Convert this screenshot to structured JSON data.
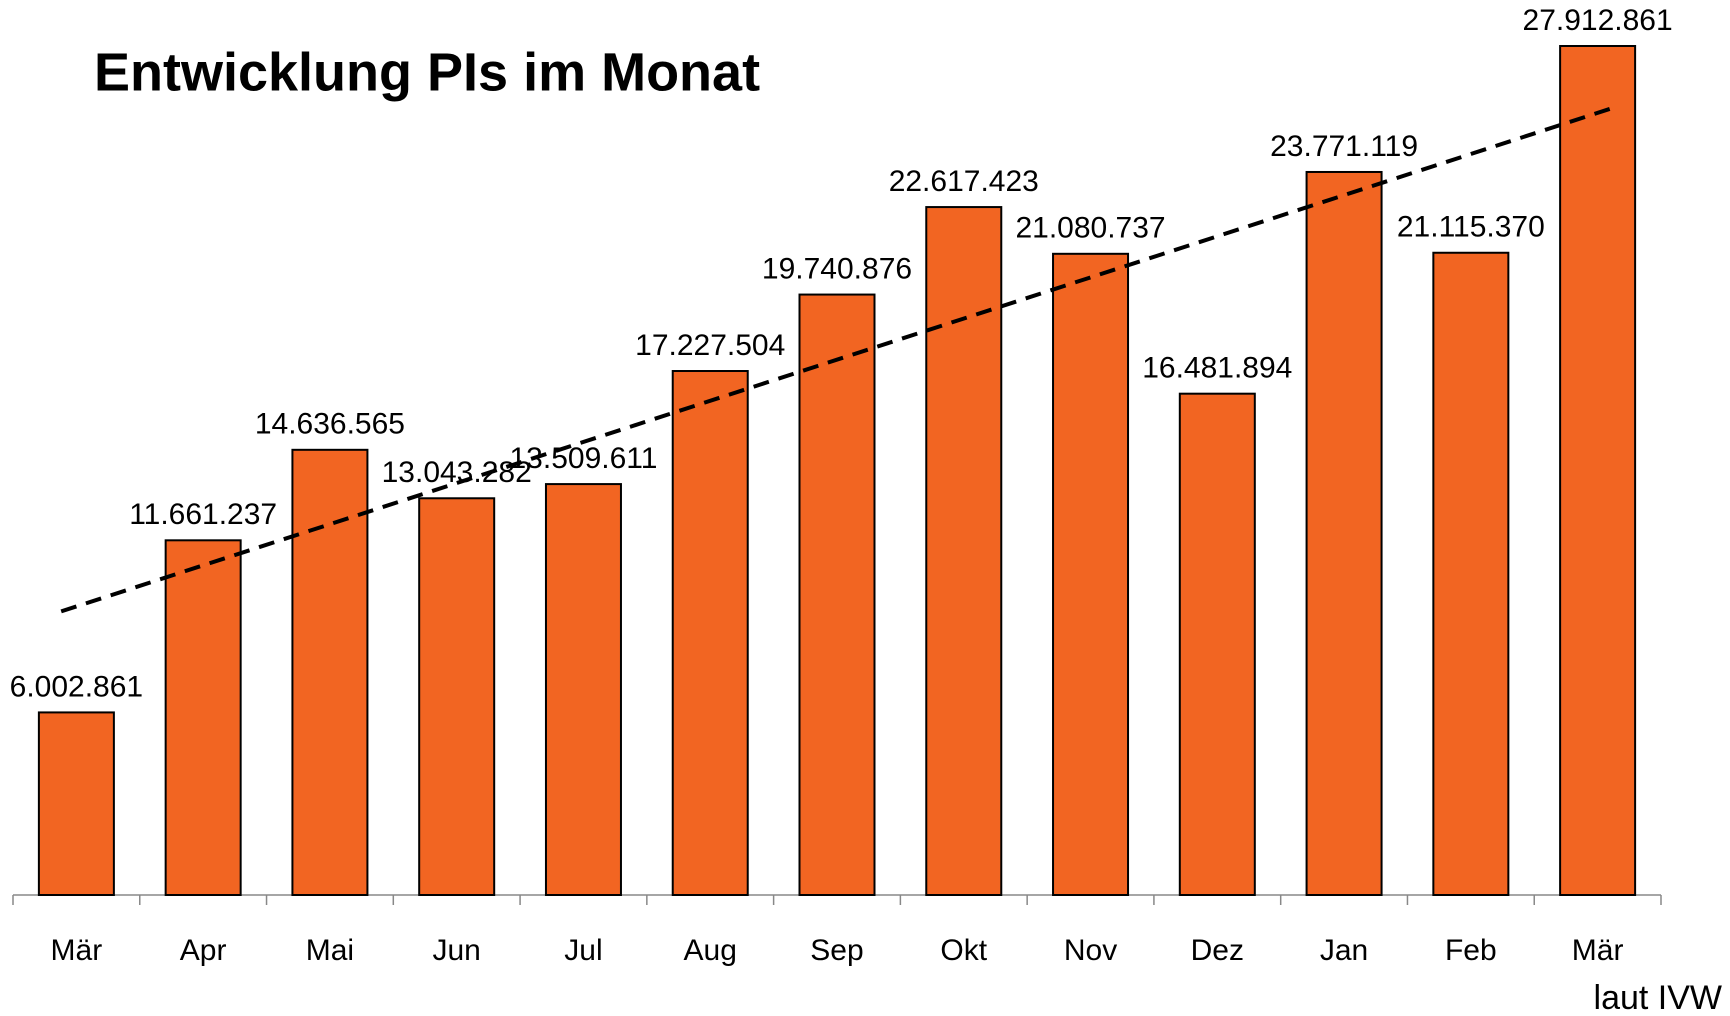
{
  "chart_data": {
    "type": "bar",
    "title": "Entwicklung PIs im Monat",
    "note": "laut IVW",
    "categories": [
      "Mär",
      "Apr",
      "Mai",
      "Jun",
      "Jul",
      "Aug",
      "Sep",
      "Okt",
      "Nov",
      "Dez",
      "Jan",
      "Feb",
      "Mär"
    ],
    "values": [
      6002861,
      11661237,
      14636565,
      13043282,
      13509611,
      17227504,
      19740876,
      22617423,
      21080737,
      16481894,
      23771119,
      21115370,
      27912861
    ],
    "value_labels": [
      "6.002.861",
      "11.661.237",
      "14.636.565",
      "13.043.282",
      "13.509.611",
      "17.227.504",
      "19.740.876",
      "22.617.423",
      "21.080.737",
      "16.481.894",
      "23.771.119",
      "21.115.370",
      "27.912.861"
    ],
    "color": "#f26522",
    "trendline": true
  }
}
